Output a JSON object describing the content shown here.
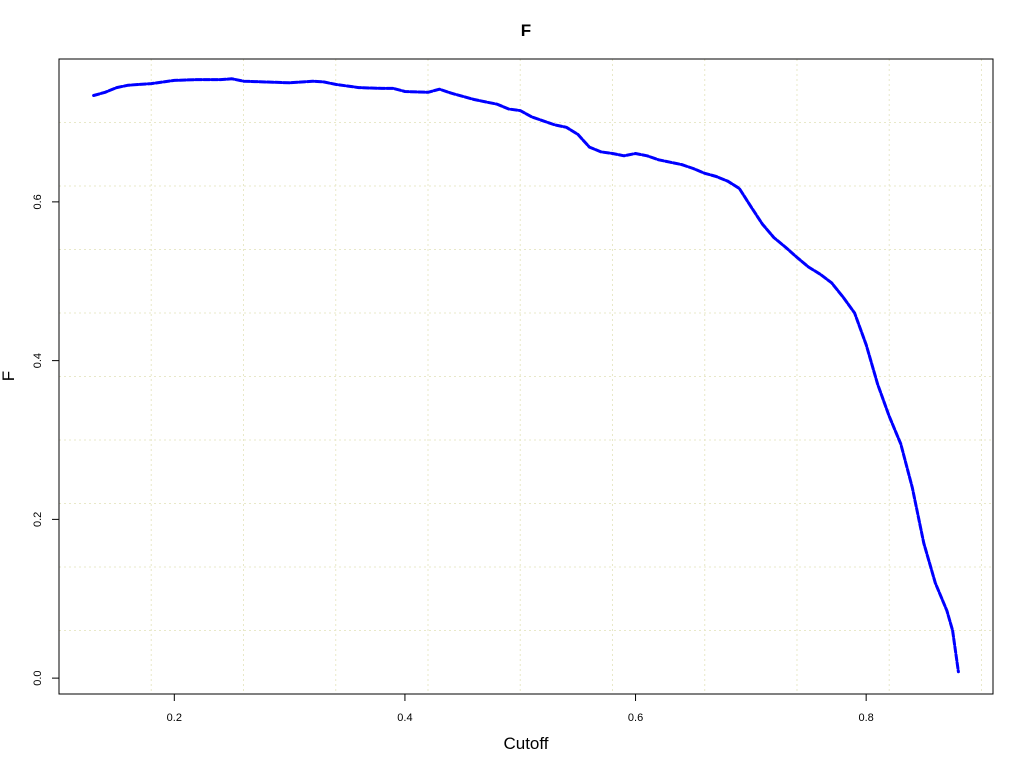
{
  "chart_data": {
    "type": "line",
    "title": "F",
    "xlabel": "Cutoff",
    "ylabel": "F",
    "xlim": [
      0.1,
      0.91
    ],
    "ylim": [
      -0.02,
      0.78
    ],
    "x_ticks": [
      0.2,
      0.4,
      0.6,
      0.8
    ],
    "x_tick_labels": [
      "0.2",
      "0.4",
      "0.6",
      "0.8"
    ],
    "y_ticks": [
      0.0,
      0.2,
      0.4,
      0.6
    ],
    "y_tick_labels": [
      "0.0",
      "0.2",
      "0.4",
      "0.6"
    ],
    "grid": true,
    "line_style": "dashed",
    "series_color": "#0000ff",
    "series": [
      {
        "x": [
          0.13,
          0.14,
          0.15,
          0.16,
          0.17,
          0.18,
          0.19,
          0.2,
          0.22,
          0.24,
          0.25,
          0.26,
          0.28,
          0.3,
          0.32,
          0.33,
          0.34,
          0.35,
          0.36,
          0.38,
          0.39,
          0.4,
          0.42,
          0.43,
          0.44,
          0.45,
          0.46,
          0.47,
          0.48,
          0.49,
          0.5,
          0.51,
          0.52,
          0.53,
          0.54,
          0.55,
          0.56,
          0.57,
          0.58,
          0.59,
          0.6,
          0.61,
          0.62,
          0.63,
          0.64,
          0.65,
          0.66,
          0.67,
          0.68,
          0.69,
          0.7,
          0.71,
          0.72,
          0.73,
          0.74,
          0.75,
          0.76,
          0.77,
          0.78,
          0.79,
          0.8,
          0.81,
          0.82,
          0.83,
          0.84,
          0.85,
          0.86,
          0.87,
          0.875,
          0.88
        ],
        "y": [
          0.734,
          0.738,
          0.744,
          0.747,
          0.748,
          0.749,
          0.751,
          0.753,
          0.754,
          0.754,
          0.755,
          0.752,
          0.751,
          0.75,
          0.752,
          0.751,
          0.748,
          0.746,
          0.744,
          0.743,
          0.743,
          0.739,
          0.738,
          0.742,
          0.737,
          0.733,
          0.729,
          0.726,
          0.723,
          0.717,
          0.715,
          0.707,
          0.702,
          0.697,
          0.694,
          0.685,
          0.669,
          0.663,
          0.661,
          0.658,
          0.661,
          0.658,
          0.653,
          0.65,
          0.647,
          0.642,
          0.636,
          0.632,
          0.626,
          0.617,
          0.594,
          0.572,
          0.555,
          0.543,
          0.53,
          0.518,
          0.509,
          0.498,
          0.48,
          0.46,
          0.42,
          0.37,
          0.33,
          0.295,
          0.24,
          0.17,
          0.12,
          0.085,
          0.06,
          0.008
        ]
      }
    ]
  }
}
